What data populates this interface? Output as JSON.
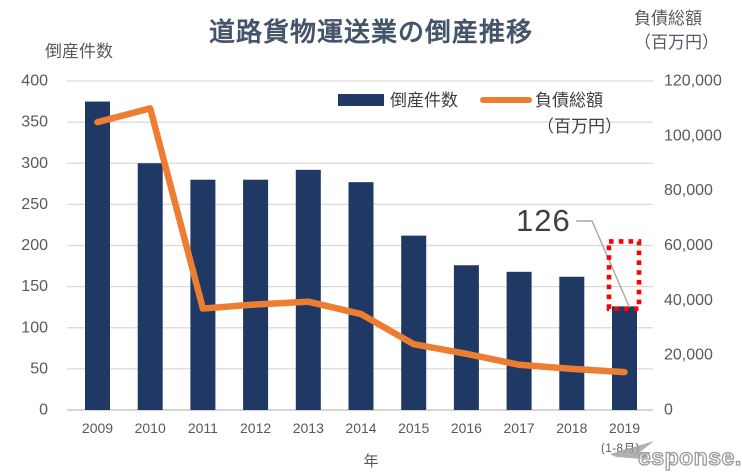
{
  "title": "道路貨物運送業の倒産推移",
  "left_axis_title": "倒産件数",
  "right_axis_title_line1": "負債総額",
  "right_axis_title_line2": "（百万円）",
  "x_axis_title": "年",
  "legend": {
    "bar_label": "倒産件数",
    "line_label_line1": "負債総額",
    "line_label_line2": "（百万円）"
  },
  "annotation_value": "126",
  "last_category_sublabel": "(1-8月)",
  "watermark_text": "esponse.",
  "colors": {
    "bar": "#1F3864",
    "line": "#ED7D31",
    "grid": "#D9D9D9",
    "axis_line": "#C8C8C8",
    "tick_text": "#595959",
    "title_text": "#44546A",
    "annotation_text": "#404040",
    "leader_line": "#A6A6A6",
    "projection_box": "#FF0000",
    "watermark": "#9E9E9E"
  },
  "chart_data": {
    "type": "bar",
    "subtype": "combo-bar-line-dual-axis",
    "title": "道路貨物運送業の倒産推移",
    "categories": [
      "2009",
      "2010",
      "2011",
      "2012",
      "2013",
      "2014",
      "2015",
      "2016",
      "2017",
      "2018",
      "2019"
    ],
    "category_sublabels": {
      "2019": "(1-8月)"
    },
    "series": [
      {
        "name": "倒産件数",
        "type": "bar",
        "axis": "left",
        "values": [
          375,
          300,
          280,
          280,
          292,
          277,
          212,
          176,
          168,
          162,
          126
        ]
      },
      {
        "name": "負債総額（百万円）",
        "type": "line",
        "axis": "right",
        "values": [
          105000,
          110000,
          37000,
          38500,
          39500,
          35000,
          24000,
          20500,
          16500,
          15000,
          13800
        ]
      }
    ],
    "left_axis": {
      "label": "倒産件数",
      "min": 0,
      "max": 400,
      "step": 50
    },
    "right_axis": {
      "label": "負債総額（百万円）",
      "min": 0,
      "max": 120000,
      "step": 20000
    },
    "xlabel": "年",
    "grid": true,
    "legend_position": "top-inside",
    "annotations": [
      {
        "type": "data-label",
        "text": "126",
        "target_category": "2019",
        "target_series": "倒産件数"
      },
      {
        "type": "dashed-red-rect",
        "target_category": "2019",
        "top_value_left_axis": 205,
        "bottom_value_left_axis": 123
      }
    ]
  }
}
